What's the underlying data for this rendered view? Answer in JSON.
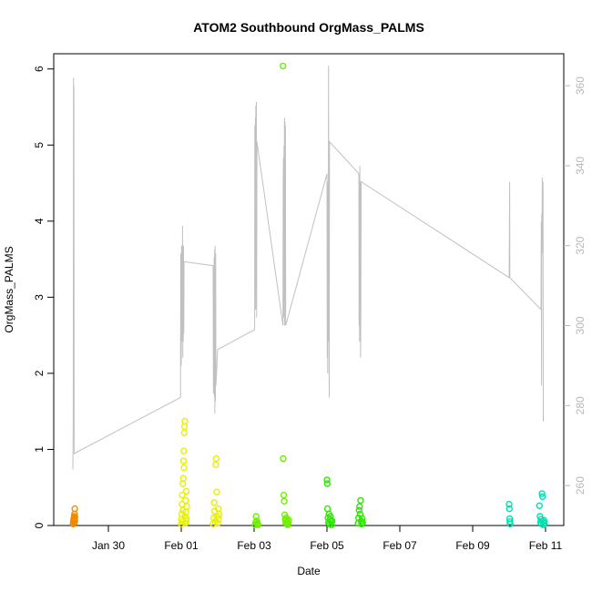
{
  "chart_data": {
    "type": "scatter",
    "title": "ATOM2 Southbound OrgMass_PALMS",
    "xlabel": "Date",
    "ylabel": "OrgMass_PALMS",
    "x_is_date": true,
    "xlim": [
      "2017-01-28T12:00",
      "2017-02-11T12:00"
    ],
    "ylim": [
      0,
      6.2
    ],
    "y2lim": [
      250,
      368
    ],
    "x_ticks": [
      {
        "date": "2017-01-30",
        "label": "Jan 30"
      },
      {
        "date": "2017-02-01",
        "label": "Feb 01"
      },
      {
        "date": "2017-02-03",
        "label": "Feb 03"
      },
      {
        "date": "2017-02-05",
        "label": "Feb 05"
      },
      {
        "date": "2017-02-07",
        "label": "Feb 07"
      },
      {
        "date": "2017-02-09",
        "label": "Feb 09"
      },
      {
        "date": "2017-02-11",
        "label": "Feb 11"
      }
    ],
    "y_ticks": [
      "0",
      "1",
      "2",
      "3",
      "4",
      "5",
      "6"
    ],
    "y2_ticks": [
      "260",
      "280",
      "300",
      "320",
      "340",
      "360"
    ],
    "colors": {
      "secondary_line": "#c0c0c0",
      "axis": "#000000",
      "right_axis": "#b8b8b8"
    },
    "series": [
      {
        "color": "#f08a00",
        "points": [
          [
            "2017-01-29T00:50",
            0.02
          ],
          [
            "2017-01-29T00:55",
            0.04
          ],
          [
            "2017-01-29T01:00",
            0.06
          ],
          [
            "2017-01-29T01:05",
            0.03
          ],
          [
            "2017-01-29T01:10",
            0.08
          ],
          [
            "2017-01-29T01:15",
            0.05
          ],
          [
            "2017-01-29T01:20",
            0.1
          ],
          [
            "2017-01-29T01:25",
            0.07
          ],
          [
            "2017-01-29T01:30",
            0.12
          ],
          [
            "2017-01-29T01:35",
            0.04
          ],
          [
            "2017-01-29T01:40",
            0.15
          ],
          [
            "2017-01-29T01:45",
            0.09
          ],
          [
            "2017-01-29T01:50",
            0.22
          ],
          [
            "2017-01-29T01:55",
            0.06
          ],
          [
            "2017-01-29T02:00",
            0.11
          ]
        ]
      },
      {
        "color": "#e8f000",
        "points": [
          [
            "2017-02-01T00:00",
            0.02
          ],
          [
            "2017-02-01T00:10",
            0.08
          ],
          [
            "2017-02-01T00:20",
            0.15
          ],
          [
            "2017-02-01T00:30",
            0.28
          ],
          [
            "2017-02-01T00:40",
            0.4
          ],
          [
            "2017-02-01T00:50",
            0.05
          ],
          [
            "2017-02-01T01:00",
            0.55
          ],
          [
            "2017-02-01T01:10",
            0.2
          ],
          [
            "2017-02-01T01:20",
            0.62
          ],
          [
            "2017-02-01T01:30",
            0.85
          ],
          [
            "2017-02-01T01:40",
            0.98
          ],
          [
            "2017-02-01T01:50",
            0.76
          ],
          [
            "2017-02-01T02:00",
            1.22
          ],
          [
            "2017-02-01T02:10",
            1.3
          ],
          [
            "2017-02-01T02:20",
            1.37
          ],
          [
            "2017-02-01T02:30",
            0.12
          ],
          [
            "2017-02-01T02:40",
            0.03
          ],
          [
            "2017-02-01T02:50",
            0.33
          ],
          [
            "2017-02-01T03:00",
            0.18
          ],
          [
            "2017-02-01T03:10",
            0.06
          ],
          [
            "2017-02-01T03:20",
            0.45
          ],
          [
            "2017-02-01T03:30",
            0.09
          ],
          [
            "2017-02-01T03:40",
            0.25
          ],
          [
            "2017-02-01T21:00",
            0.02
          ],
          [
            "2017-02-01T21:20",
            0.1
          ],
          [
            "2017-02-01T21:40",
            0.3
          ],
          [
            "2017-02-01T22:00",
            0.19
          ],
          [
            "2017-02-01T22:20",
            0.05
          ],
          [
            "2017-02-01T22:40",
            0.8
          ],
          [
            "2017-02-01T23:00",
            0.88
          ],
          [
            "2017-02-01T23:20",
            0.44
          ],
          [
            "2017-02-01T23:40",
            0.12
          ],
          [
            "2017-02-02T00:00",
            0.03
          ],
          [
            "2017-02-02T00:20",
            0.22
          ],
          [
            "2017-02-02T00:40",
            0.08
          ],
          [
            "2017-02-02T01:00",
            0.15
          ]
        ]
      },
      {
        "color": "#70f000",
        "points": [
          [
            "2017-02-03T00:40",
            0.01
          ],
          [
            "2017-02-03T01:00",
            0.04
          ],
          [
            "2017-02-03T01:20",
            0.12
          ],
          [
            "2017-02-03T01:40",
            0.06
          ],
          [
            "2017-02-03T02:00",
            0.02
          ],
          [
            "2017-02-03T02:20",
            0.03
          ],
          [
            "2017-02-03T02:40",
            0.01
          ],
          [
            "2017-02-03T19:00",
            6.04
          ],
          [
            "2017-02-03T19:10",
            0.88
          ],
          [
            "2017-02-03T19:30",
            0.4
          ],
          [
            "2017-02-03T19:50",
            0.32
          ],
          [
            "2017-02-03T20:10",
            0.14
          ],
          [
            "2017-02-03T20:30",
            0.08
          ],
          [
            "2017-02-03T20:50",
            0.04
          ],
          [
            "2017-02-03T21:10",
            0.1
          ],
          [
            "2017-02-03T21:30",
            0.02
          ],
          [
            "2017-02-03T21:50",
            0.06
          ],
          [
            "2017-02-03T22:10",
            0.01
          ],
          [
            "2017-02-03T22:30",
            0.03
          ],
          [
            "2017-02-03T22:50",
            0.07
          ]
        ]
      },
      {
        "color": "#2ee800",
        "points": [
          [
            "2017-02-05T00:00",
            0.6
          ],
          [
            "2017-02-05T00:10",
            0.55
          ],
          [
            "2017-02-05T00:20",
            0.22
          ],
          [
            "2017-02-05T00:40",
            0.1
          ],
          [
            "2017-02-05T01:00",
            0.04
          ],
          [
            "2017-02-05T01:20",
            0.15
          ],
          [
            "2017-02-05T01:40",
            0.02
          ],
          [
            "2017-02-05T02:00",
            0.08
          ],
          [
            "2017-02-05T02:20",
            0.12
          ],
          [
            "2017-02-05T02:40",
            0.05
          ],
          [
            "2017-02-05T03:00",
            0.01
          ],
          [
            "2017-02-05T03:20",
            0.06
          ],
          [
            "2017-02-05T20:30",
            0.03
          ],
          [
            "2017-02-05T20:50",
            0.1
          ],
          [
            "2017-02-05T21:10",
            0.2
          ],
          [
            "2017-02-05T21:30",
            0.25
          ],
          [
            "2017-02-05T21:50",
            0.15
          ],
          [
            "2017-02-05T22:10",
            0.33
          ],
          [
            "2017-02-05T22:30",
            0.06
          ],
          [
            "2017-02-05T22:50",
            0.02
          ],
          [
            "2017-02-05T23:10",
            0.09
          ],
          [
            "2017-02-05T23:30",
            0.04
          ]
        ]
      },
      {
        "color": "#00e0b0",
        "points": [
          [
            "2017-02-10T00:00",
            0.28
          ],
          [
            "2017-02-10T00:10",
            0.22
          ],
          [
            "2017-02-10T00:20",
            0.09
          ],
          [
            "2017-02-10T00:30",
            0.05
          ],
          [
            "2017-02-10T00:40",
            0.02
          ],
          [
            "2017-02-10T20:00",
            0.26
          ],
          [
            "2017-02-10T20:20",
            0.12
          ],
          [
            "2017-02-10T20:40",
            0.04
          ],
          [
            "2017-02-10T21:00",
            0.08
          ],
          [
            "2017-02-10T21:20",
            0.02
          ],
          [
            "2017-02-10T21:40",
            0.42
          ],
          [
            "2017-02-10T22:00",
            0.38
          ],
          [
            "2017-02-10T22:20",
            0.05
          ],
          [
            "2017-02-10T22:40",
            0.01
          ],
          [
            "2017-02-10T23:00",
            0.07
          ],
          [
            "2017-02-10T23:20",
            0.03
          ]
        ]
      }
    ],
    "secondary_line": {
      "axis": "right",
      "points": [
        [
          "2017-01-29T00:35",
          264
        ],
        [
          "2017-01-29T00:50",
          276
        ],
        [
          "2017-01-29T01:00",
          362
        ],
        [
          "2017-01-29T01:05",
          355
        ],
        [
          "2017-01-29T01:10",
          348
        ],
        [
          "2017-01-29T01:15",
          360
        ],
        [
          "2017-01-29T01:20",
          355
        ],
        [
          "2017-01-29T01:25",
          268
        ],
        [
          "2017-01-31T23:30",
          282
        ],
        [
          "2017-01-31T23:40",
          318
        ],
        [
          "2017-01-31T23:50",
          316
        ],
        [
          "2017-02-01T00:00",
          290
        ],
        [
          "2017-02-01T00:10",
          320
        ],
        [
          "2017-02-01T00:20",
          296
        ],
        [
          "2017-02-01T00:30",
          318
        ],
        [
          "2017-02-01T00:40",
          300
        ],
        [
          "2017-02-01T00:50",
          325
        ],
        [
          "2017-02-01T01:00",
          292
        ],
        [
          "2017-02-01T01:10",
          318
        ],
        [
          "2017-02-01T01:20",
          296
        ],
        [
          "2017-02-01T01:30",
          320
        ],
        [
          "2017-02-01T01:40",
          298
        ],
        [
          "2017-02-01T01:50",
          316
        ],
        [
          "2017-02-01T21:00",
          315
        ],
        [
          "2017-02-01T21:10",
          283
        ],
        [
          "2017-02-01T21:20",
          313
        ],
        [
          "2017-02-01T21:30",
          286
        ],
        [
          "2017-02-01T21:40",
          317
        ],
        [
          "2017-02-01T21:50",
          282
        ],
        [
          "2017-02-01T22:00",
          319
        ],
        [
          "2017-02-01T22:10",
          278
        ],
        [
          "2017-02-01T22:20",
          320
        ],
        [
          "2017-02-01T22:30",
          281
        ],
        [
          "2017-02-01T22:40",
          318
        ],
        [
          "2017-02-01T22:50",
          285
        ],
        [
          "2017-02-02T00:00",
          294
        ],
        [
          "2017-02-03T00:20",
          299
        ],
        [
          "2017-02-03T00:30",
          350
        ],
        [
          "2017-02-03T00:40",
          320
        ],
        [
          "2017-02-03T00:50",
          352
        ],
        [
          "2017-02-03T01:00",
          304
        ],
        [
          "2017-02-03T01:10",
          355
        ],
        [
          "2017-02-03T01:20",
          320
        ],
        [
          "2017-02-03T01:30",
          356
        ],
        [
          "2017-02-03T01:40",
          302
        ],
        [
          "2017-02-03T01:50",
          346
        ],
        [
          "2017-02-03T19:00",
          300
        ],
        [
          "2017-02-03T19:10",
          336
        ],
        [
          "2017-02-03T19:20",
          342
        ],
        [
          "2017-02-03T19:30",
          302
        ],
        [
          "2017-02-03T19:40",
          345
        ],
        [
          "2017-02-03T19:50",
          310
        ],
        [
          "2017-02-03T20:00",
          352
        ],
        [
          "2017-02-03T20:10",
          300
        ],
        [
          "2017-02-03T20:20",
          351
        ],
        [
          "2017-02-03T20:30",
          305
        ],
        [
          "2017-02-03T20:40",
          350
        ],
        [
          "2017-02-03T20:50",
          300
        ],
        [
          "2017-02-05T00:00",
          338
        ],
        [
          "2017-02-05T00:10",
          292
        ],
        [
          "2017-02-05T00:20",
          335
        ],
        [
          "2017-02-05T00:30",
          288
        ],
        [
          "2017-02-05T00:40",
          336
        ],
        [
          "2017-02-05T00:50",
          296
        ],
        [
          "2017-02-05T01:00",
          365
        ],
        [
          "2017-02-05T01:10",
          345
        ],
        [
          "2017-02-05T01:20",
          300
        ],
        [
          "2017-02-05T01:30",
          282
        ],
        [
          "2017-02-05T01:40",
          346
        ],
        [
          "2017-02-05T21:00",
          338
        ],
        [
          "2017-02-05T21:10",
          300
        ],
        [
          "2017-02-05T21:20",
          325
        ],
        [
          "2017-02-05T21:30",
          296
        ],
        [
          "2017-02-05T21:40",
          340
        ],
        [
          "2017-02-05T21:50",
          296
        ],
        [
          "2017-02-05T22:00",
          336
        ],
        [
          "2017-02-05T22:10",
          292
        ],
        [
          "2017-02-05T22:20",
          305
        ],
        [
          "2017-02-05T22:30",
          336
        ],
        [
          "2017-02-10T00:00",
          312
        ],
        [
          "2017-02-10T00:10",
          322
        ],
        [
          "2017-02-10T00:20",
          336
        ],
        [
          "2017-02-10T00:30",
          312
        ],
        [
          "2017-02-10T21:00",
          304
        ],
        [
          "2017-02-10T21:10",
          326
        ],
        [
          "2017-02-10T21:20",
          285
        ],
        [
          "2017-02-10T21:30",
          328
        ],
        [
          "2017-02-10T21:40",
          320
        ],
        [
          "2017-02-10T21:50",
          337
        ],
        [
          "2017-02-10T22:00",
          322
        ],
        [
          "2017-02-10T22:10",
          318
        ],
        [
          "2017-02-10T22:20",
          336
        ],
        [
          "2017-02-10T22:30",
          276
        ]
      ]
    }
  }
}
